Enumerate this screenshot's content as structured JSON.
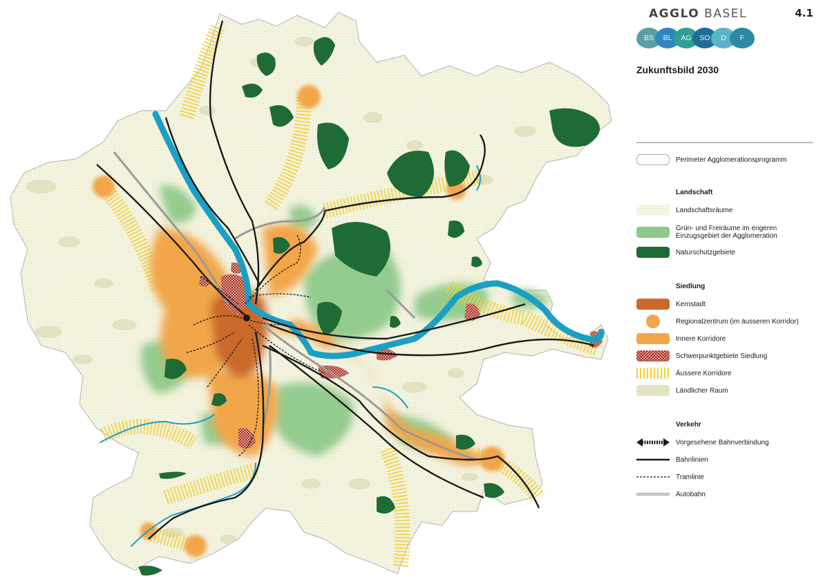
{
  "brand": {
    "prefix": "AGGLO",
    "suffix": "BASEL"
  },
  "sheet_number": "4.1",
  "cantons": [
    {
      "code": "BS",
      "color": "#5b9fa6"
    },
    {
      "code": "BL",
      "color": "#2f86c2"
    },
    {
      "code": "AG",
      "color": "#2fa096"
    },
    {
      "code": "SO",
      "color": "#1f6e98"
    },
    {
      "code": "D",
      "color": "#5ab4c8"
    },
    {
      "code": "F",
      "color": "#2c8aa4"
    }
  ],
  "title": "Zukunftsbild 2030",
  "legend": {
    "perimeter": "Perimeter Agglomerationsprogramm",
    "landschaft": {
      "heading": "Landschaft",
      "items": [
        {
          "label": "Landschaftsräume",
          "swatch": "dotted-yellow"
        },
        {
          "label": "Grün- und Freiräume im engeren Einzugsgebiet der Agglomeration",
          "swatch": "#8fc98a"
        },
        {
          "label": "Naturschutzgebiete",
          "swatch": "#1e6b35"
        }
      ]
    },
    "siedlung": {
      "heading": "Siedlung",
      "items": [
        {
          "label": "Kernstadt",
          "swatch": "#c9692a"
        },
        {
          "label": "Regionalzentrum (im äusseren Korridor)",
          "swatch": "#f2a64a"
        },
        {
          "label": "Innere Korridore",
          "swatch": "#f2a64a"
        },
        {
          "label": "Schwerpunktgebiete Siedlung",
          "swatch": "hatch-red"
        },
        {
          "label": "Äussere Korridore",
          "swatch": "stripe-yellow"
        },
        {
          "label": "Ländlicher Raum",
          "swatch": "#e3e4c4"
        }
      ]
    },
    "verkehr": {
      "heading": "Verkehr",
      "items": [
        {
          "label": "Vorgesehene Bahnverbindung",
          "swatch": "planned-rail"
        },
        {
          "label": "Bahnlinien",
          "swatch": "rail"
        },
        {
          "label": "Tramlinie",
          "swatch": "tram"
        },
        {
          "label": "Autobahn",
          "swatch": "motorway"
        }
      ]
    }
  },
  "colors": {
    "perimeter_fill": "#f3f3e0",
    "rural": "#e3e4c4",
    "green_space": "#8fc98a",
    "nature_reserve": "#1e6b35",
    "core_city": "#c9692a",
    "inner_corridor": "#f2a64a",
    "outer_corridor": "#f1cf3c",
    "river": "#1b9fc4",
    "rail": "#1a1a1a"
  }
}
